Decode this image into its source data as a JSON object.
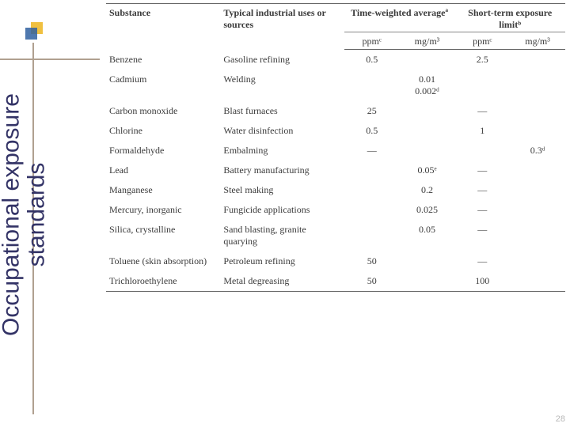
{
  "title": {
    "line1": "Occupational exposure",
    "line2": "standards"
  },
  "page_number": "28",
  "headers": {
    "substance": "Substance",
    "uses": "Typical industrial uses or sources",
    "twa_group": "Time-weighted averageª",
    "stel_group": "Short-term exposure limitᵇ",
    "ppm": "ppmᶜ",
    "mgm3_a": "mg/m³",
    "mgm3_b": "mg/m³"
  },
  "rows": [
    {
      "substance": "Benzene",
      "uses": "Gasoline refining",
      "twa_ppm": "0.5",
      "twa_mg": "",
      "stel_ppm": "2.5",
      "stel_mg": ""
    },
    {
      "substance": "Cadmium",
      "uses": "Welding",
      "twa_ppm": "",
      "twa_mg": "0.01\n0.002ᵈ",
      "stel_ppm": "",
      "stel_mg": ""
    },
    {
      "substance": "Carbon monoxide",
      "uses": "Blast furnaces",
      "twa_ppm": "25",
      "twa_mg": "",
      "stel_ppm": "—",
      "stel_mg": ""
    },
    {
      "substance": "Chlorine",
      "uses": "Water disinfection",
      "twa_ppm": "0.5",
      "twa_mg": "",
      "stel_ppm": "1",
      "stel_mg": ""
    },
    {
      "substance": "Formaldehyde",
      "uses": "Embalming",
      "twa_ppm": "—",
      "twa_mg": "",
      "stel_ppm": "",
      "stel_mg": "0.3ᵈ"
    },
    {
      "substance": "Lead",
      "uses": "Battery manufacturing",
      "twa_ppm": "",
      "twa_mg": "0.05ᵉ",
      "stel_ppm": "—",
      "stel_mg": ""
    },
    {
      "substance": "Manganese",
      "uses": "Steel making",
      "twa_ppm": "",
      "twa_mg": "0.2",
      "stel_ppm": "—",
      "stel_mg": ""
    },
    {
      "substance": "Mercury, inorganic",
      "uses": "Fungicide applications",
      "twa_ppm": "",
      "twa_mg": "0.025",
      "stel_ppm": "—",
      "stel_mg": ""
    },
    {
      "substance": "Silica, crystalline",
      "uses": "Sand blasting, granite quarying",
      "twa_ppm": "",
      "twa_mg": "0.05",
      "stel_ppm": "—",
      "stel_mg": ""
    },
    {
      "substance": "Toluene (skin absorption)",
      "uses": "Petroleum refining",
      "twa_ppm": "50",
      "twa_mg": "",
      "stel_ppm": "—",
      "stel_mg": ""
    },
    {
      "substance": "Trichloroethylene",
      "uses": "Metal degreasing",
      "twa_ppm": "50",
      "twa_mg": "",
      "stel_ppm": "100",
      "stel_mg": ""
    }
  ],
  "colors": {
    "accent_yellow": "#f0c040",
    "accent_blue": "#3060a0",
    "rule": "#b0a090",
    "title_text": "#333366",
    "body_text": "#3a3a3a",
    "table_rule": "#666666"
  }
}
